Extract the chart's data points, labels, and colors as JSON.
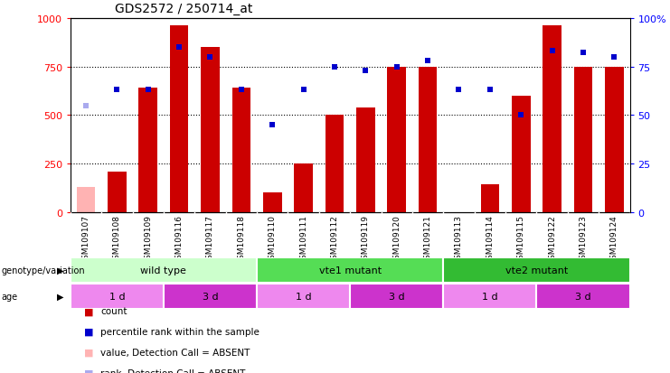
{
  "title": "GDS2572 / 250714_at",
  "samples": [
    "GSM109107",
    "GSM109108",
    "GSM109109",
    "GSM109116",
    "GSM109117",
    "GSM109118",
    "GSM109110",
    "GSM109111",
    "GSM109112",
    "GSM109119",
    "GSM109120",
    "GSM109121",
    "GSM109113",
    "GSM109114",
    "GSM109115",
    "GSM109122",
    "GSM109123",
    "GSM109124"
  ],
  "counts": [
    130,
    210,
    640,
    960,
    850,
    640,
    100,
    250,
    500,
    540,
    750,
    750,
    0,
    145,
    600,
    960,
    750,
    750
  ],
  "ranks": [
    null,
    63,
    63,
    85,
    80,
    63,
    45,
    63,
    75,
    73,
    75,
    78,
    63,
    63,
    50,
    83,
    82,
    80
  ],
  "count_absent_idx": [
    0
  ],
  "rank_absent_idx": [
    0
  ],
  "bar_color_default": "#cc0000",
  "bar_color_absent": "#ffb3b3",
  "rank_color_default": "#0000cc",
  "rank_color_absent": "#aaaaee",
  "absent_rank_value": 55,
  "ylim_left": [
    0,
    1000
  ],
  "ylim_right": [
    0,
    100
  ],
  "yticks_left": [
    0,
    250,
    500,
    750,
    1000
  ],
  "yticks_right": [
    0,
    25,
    50,
    75,
    100
  ],
  "ytick_right_labels": [
    "0",
    "25",
    "50",
    "75",
    "100%"
  ],
  "genotype_groups": [
    {
      "label": "wild type",
      "start": 0,
      "end": 6,
      "color": "#ccffcc"
    },
    {
      "label": "vte1 mutant",
      "start": 6,
      "end": 12,
      "color": "#55dd55"
    },
    {
      "label": "vte2 mutant",
      "start": 12,
      "end": 18,
      "color": "#33bb33"
    }
  ],
  "age_groups": [
    {
      "label": "1 d",
      "start": 0,
      "end": 3,
      "color": "#ee88ee"
    },
    {
      "label": "3 d",
      "start": 3,
      "end": 6,
      "color": "#cc33cc"
    },
    {
      "label": "1 d",
      "start": 6,
      "end": 9,
      "color": "#ee88ee"
    },
    {
      "label": "3 d",
      "start": 9,
      "end": 12,
      "color": "#cc33cc"
    },
    {
      "label": "1 d",
      "start": 12,
      "end": 15,
      "color": "#ee88ee"
    },
    {
      "label": "3 d",
      "start": 15,
      "end": 18,
      "color": "#cc33cc"
    }
  ],
  "legend_items": [
    {
      "label": "count",
      "color": "#cc0000"
    },
    {
      "label": "percentile rank within the sample",
      "color": "#0000cc"
    },
    {
      "label": "value, Detection Call = ABSENT",
      "color": "#ffb3b3"
    },
    {
      "label": "rank, Detection Call = ABSENT",
      "color": "#aaaaee"
    }
  ],
  "fig_width": 7.41,
  "fig_height": 4.14,
  "dpi": 100
}
